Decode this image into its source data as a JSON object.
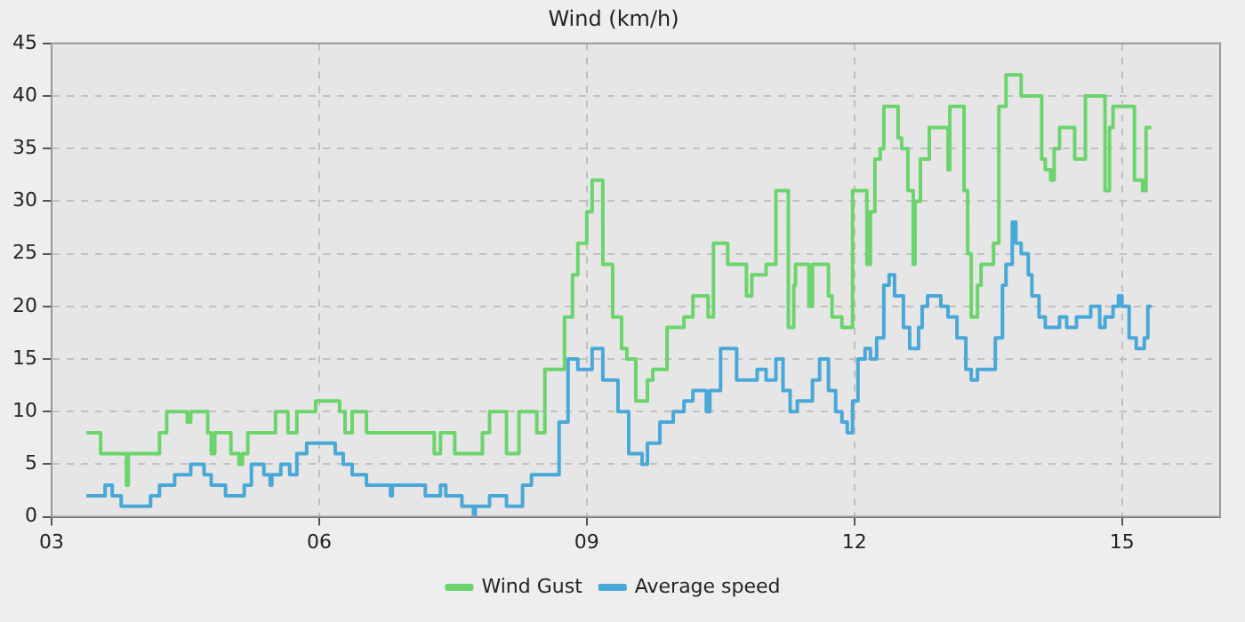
{
  "chart_data": {
    "type": "step",
    "title": "Wind (km/h)",
    "xlim": [
      3,
      16.1
    ],
    "xticks": [
      {
        "value": 3,
        "label": "03"
      },
      {
        "value": 6,
        "label": "06"
      },
      {
        "value": 9,
        "label": "09"
      },
      {
        "value": 12,
        "label": "12"
      },
      {
        "value": 15,
        "label": "15"
      }
    ],
    "ylim": [
      0,
      45
    ],
    "yticks": [
      0,
      5,
      10,
      15,
      20,
      25,
      30,
      35,
      40,
      45
    ],
    "grid": true,
    "legend": "bottom",
    "marker": "none",
    "line_style": "solid",
    "series": [
      {
        "name": "Wind Gust",
        "color": "#6cd46c",
        "x": [
          3.39,
          3.55,
          3.84,
          3.86,
          4.21,
          4.29,
          4.52,
          4.56,
          4.75,
          4.79,
          4.83,
          5.01,
          5.1,
          5.14,
          5.2,
          5.51,
          5.65,
          5.75,
          5.96,
          6.23,
          6.29,
          6.37,
          6.53,
          7.29,
          7.36,
          7.52,
          7.83,
          7.91,
          8.1,
          8.24,
          8.44,
          8.53,
          8.75,
          8.84,
          8.9,
          9.0,
          9.06,
          9.18,
          9.29,
          9.39,
          9.45,
          9.55,
          9.68,
          9.74,
          9.9,
          10.09,
          10.19,
          10.36,
          10.42,
          10.58,
          10.79,
          10.85,
          11.01,
          11.12,
          11.26,
          11.32,
          11.34,
          11.49,
          11.53,
          11.71,
          11.75,
          11.86,
          11.98,
          12.14,
          12.18,
          12.23,
          12.29,
          12.33,
          12.49,
          12.53,
          12.6,
          12.66,
          12.68,
          12.74,
          12.84,
          13.05,
          13.07,
          13.23,
          13.27,
          13.31,
          13.38,
          13.42,
          13.56,
          13.62,
          13.7,
          13.87,
          14.1,
          14.14,
          14.2,
          14.24,
          14.3,
          14.47,
          14.59,
          14.81,
          14.86,
          14.9,
          15.14,
          15.23,
          15.27,
          15.33
        ],
        "values": [
          8,
          6,
          3,
          6,
          8,
          10,
          9,
          10,
          8,
          6,
          8,
          6,
          5,
          6,
          8,
          10,
          8,
          10,
          11,
          10,
          8,
          10,
          8,
          6,
          8,
          6,
          8,
          10,
          6,
          10,
          8,
          14,
          19,
          23,
          26,
          29,
          32,
          24,
          19,
          16,
          15,
          11,
          13,
          14,
          18,
          19,
          21,
          19,
          26,
          24,
          21,
          23,
          24,
          31,
          18,
          22,
          24,
          20,
          24,
          21,
          19,
          18,
          31,
          24,
          29,
          34,
          35,
          39,
          36,
          35,
          31,
          24,
          30,
          34,
          37,
          33,
          39,
          31,
          25,
          19,
          22,
          24,
          26,
          39,
          42,
          40,
          34,
          33,
          32,
          35,
          37,
          34,
          40,
          31,
          37,
          39,
          32,
          31,
          37,
          37
        ]
      },
      {
        "name": "Average speed",
        "color": "#4aa8d8",
        "x": [
          3.39,
          3.6,
          3.68,
          3.78,
          4.11,
          4.21,
          4.38,
          4.56,
          4.71,
          4.79,
          4.95,
          5.16,
          5.24,
          5.38,
          5.45,
          5.47,
          5.57,
          5.67,
          5.75,
          5.86,
          6.18,
          6.27,
          6.37,
          6.53,
          6.8,
          6.82,
          7.19,
          7.36,
          7.42,
          7.6,
          7.73,
          7.75,
          7.91,
          8.1,
          8.28,
          8.38,
          8.69,
          8.79,
          8.9,
          9.06,
          9.18,
          9.35,
          9.47,
          9.62,
          9.68,
          9.82,
          9.97,
          10.09,
          10.19,
          10.34,
          10.38,
          10.5,
          10.68,
          10.91,
          11.01,
          11.12,
          11.2,
          11.28,
          11.36,
          11.53,
          11.61,
          11.71,
          11.79,
          11.86,
          11.92,
          11.98,
          12.04,
          12.12,
          12.18,
          12.25,
          12.33,
          12.39,
          12.45,
          12.55,
          12.62,
          12.72,
          12.76,
          12.82,
          12.97,
          13.05,
          13.15,
          13.25,
          13.31,
          13.38,
          13.58,
          13.66,
          13.7,
          13.77,
          13.81,
          13.87,
          13.95,
          13.99,
          14.07,
          14.14,
          14.3,
          14.38,
          14.49,
          14.65,
          14.75,
          14.81,
          14.9,
          14.96,
          15.0,
          15.08,
          15.16,
          15.25,
          15.29,
          15.33
        ],
        "values": [
          2,
          3,
          2,
          1,
          2,
          3,
          4,
          5,
          4,
          3,
          2,
          3,
          5,
          4,
          3,
          4,
          5,
          4,
          6,
          7,
          6,
          5,
          4,
          3,
          2,
          3,
          2,
          3,
          2,
          1,
          0,
          1,
          2,
          1,
          3,
          4,
          9,
          15,
          14,
          16,
          13,
          10,
          6,
          5,
          7,
          9,
          10,
          11,
          12,
          10,
          12,
          16,
          13,
          14,
          13,
          15,
          12,
          10,
          11,
          13,
          15,
          12,
          10,
          9,
          8,
          11,
          15,
          16,
          15,
          17,
          22,
          23,
          21,
          18,
          16,
          18,
          20,
          21,
          20,
          19,
          17,
          14,
          13,
          14,
          17,
          22,
          24,
          28,
          26,
          25,
          23,
          21,
          19,
          18,
          19,
          18,
          19,
          20,
          18,
          19,
          20,
          21,
          20,
          17,
          16,
          17,
          20,
          20
        ]
      }
    ]
  }
}
